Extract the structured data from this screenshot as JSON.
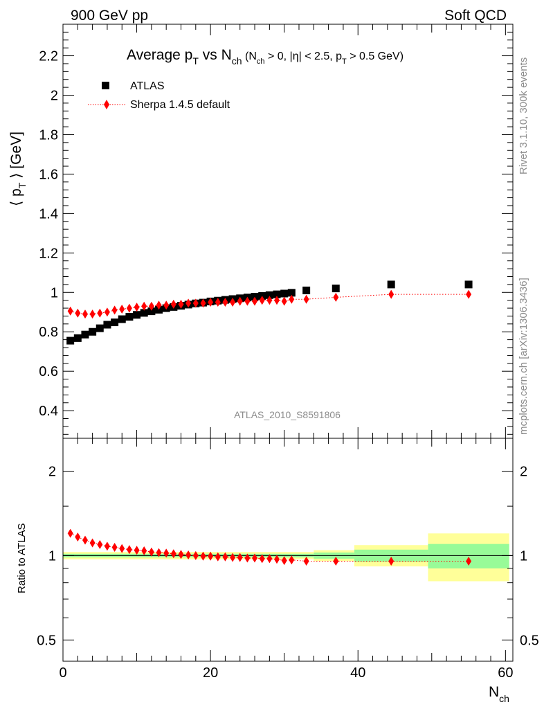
{
  "header": {
    "left": "900 GeV pp",
    "right": "Soft QCD"
  },
  "title": {
    "main": "Average p",
    "main_sub": "T",
    "mid": " vs N",
    "mid_sub": "ch",
    "cuts_open": " (N",
    "cuts_open_sub": "ch",
    "cuts_mid": " > 0, |η| < 2.5, p",
    "cuts_mid_sub": "T",
    "cuts_end": " > 0.5 GeV)"
  },
  "y_axis_label": {
    "open": "⟨ p",
    "sub": "T",
    "close": " ⟩ [GeV]"
  },
  "ratio_label": "Ratio to ATLAS",
  "x_axis_label": {
    "main": "N",
    "sub": "ch"
  },
  "side_text": {
    "rivet": "Rivet 3.1.10,  300k events",
    "mcplots": "mcplots.cern.ch [arXiv:1306.3436]"
  },
  "watermark": "ATLAS_2010_S8591806",
  "colors": {
    "data": "#000000",
    "mc": "#ff0000",
    "band_inner": "#98fb98",
    "band_outer": "#ffff99"
  },
  "chart_data": [
    {
      "type": "scatter",
      "panel": "main",
      "xlim": [
        0,
        61
      ],
      "ylim": [
        0.26,
        2.36
      ],
      "x_ticks": [
        0,
        20,
        40,
        60
      ],
      "y_ticks": [
        "0.4",
        "0.6",
        "0.8",
        "1",
        "1.2",
        "1.4",
        "1.6",
        "1.8",
        "2",
        "2.2"
      ],
      "legend_position": "top-left",
      "series": [
        {
          "name": "ATLAS",
          "marker": "square",
          "x": [
            1,
            2,
            3,
            4,
            5,
            6,
            7,
            8,
            9,
            10,
            11,
            12,
            13,
            14,
            15,
            16,
            17,
            18,
            19,
            20,
            21,
            22,
            23,
            24,
            25,
            26,
            27,
            28,
            29,
            30,
            31,
            33,
            37,
            44.5,
            55
          ],
          "y": [
            0.755,
            0.768,
            0.786,
            0.8,
            0.818,
            0.836,
            0.848,
            0.864,
            0.876,
            0.886,
            0.896,
            0.904,
            0.912,
            0.92,
            0.926,
            0.932,
            0.938,
            0.944,
            0.948,
            0.954,
            0.958,
            0.962,
            0.966,
            0.97,
            0.974,
            0.978,
            0.982,
            0.986,
            0.99,
            0.994,
            0.998,
            1.01,
            1.02,
            1.04,
            1.04
          ]
        },
        {
          "name": "Sherpa 1.4.5 default",
          "marker": "diamond",
          "line": "dotted",
          "x": [
            1,
            2,
            3,
            4,
            5,
            6,
            7,
            8,
            9,
            10,
            11,
            12,
            13,
            14,
            15,
            16,
            17,
            18,
            19,
            20,
            21,
            22,
            23,
            24,
            25,
            26,
            27,
            28,
            29,
            30,
            31,
            33,
            37,
            44.5,
            55
          ],
          "y": [
            0.905,
            0.895,
            0.89,
            0.89,
            0.895,
            0.9,
            0.91,
            0.915,
            0.92,
            0.925,
            0.93,
            0.93,
            0.935,
            0.935,
            0.94,
            0.94,
            0.945,
            0.945,
            0.945,
            0.95,
            0.95,
            0.95,
            0.95,
            0.955,
            0.955,
            0.955,
            0.96,
            0.96,
            0.96,
            0.955,
            0.965,
            0.965,
            0.975,
            0.99,
            0.99
          ]
        }
      ]
    },
    {
      "type": "scatter",
      "panel": "ratio",
      "ylabel": "Ratio to ATLAS",
      "xlim": [
        0,
        61
      ],
      "ylim": [
        0.42,
        2.62
      ],
      "log_y": true,
      "x_ticks": [
        "0",
        "20",
        "40",
        "60"
      ],
      "y_ticks": [
        "0.5",
        "1",
        "2"
      ],
      "reference": 1,
      "bands": [
        {
          "x0": 0,
          "x1": 34,
          "inner": [
            0.985,
            1.015
          ],
          "outer": [
            0.97,
            1.03
          ]
        },
        {
          "x0": 34,
          "x1": 39.5,
          "inner": [
            0.975,
            1.025
          ],
          "outer": [
            0.955,
            1.045
          ]
        },
        {
          "x0": 39.5,
          "x1": 49.5,
          "inner": [
            0.95,
            1.05
          ],
          "outer": [
            0.915,
            1.09
          ]
        },
        {
          "x0": 49.5,
          "x1": 60.5,
          "inner": [
            0.9,
            1.1
          ],
          "outer": [
            0.81,
            1.2
          ]
        }
      ],
      "series": [
        {
          "name": "Sherpa 1.4.5 default",
          "marker": "diamond",
          "x": [
            1,
            2,
            3,
            4,
            5,
            6,
            7,
            8,
            9,
            10,
            11,
            12,
            13,
            14,
            15,
            16,
            17,
            18,
            19,
            20,
            21,
            22,
            23,
            24,
            25,
            26,
            27,
            28,
            29,
            30,
            31,
            33,
            37,
            44.5,
            55
          ],
          "y": [
            1.2,
            1.165,
            1.135,
            1.11,
            1.095,
            1.08,
            1.07,
            1.06,
            1.05,
            1.045,
            1.04,
            1.03,
            1.025,
            1.02,
            1.015,
            1.01,
            1.005,
            1.0,
            0.995,
            0.995,
            0.99,
            0.99,
            0.985,
            0.985,
            0.98,
            0.98,
            0.975,
            0.975,
            0.97,
            0.96,
            0.965,
            0.955,
            0.955,
            0.955,
            0.955
          ]
        }
      ]
    }
  ]
}
